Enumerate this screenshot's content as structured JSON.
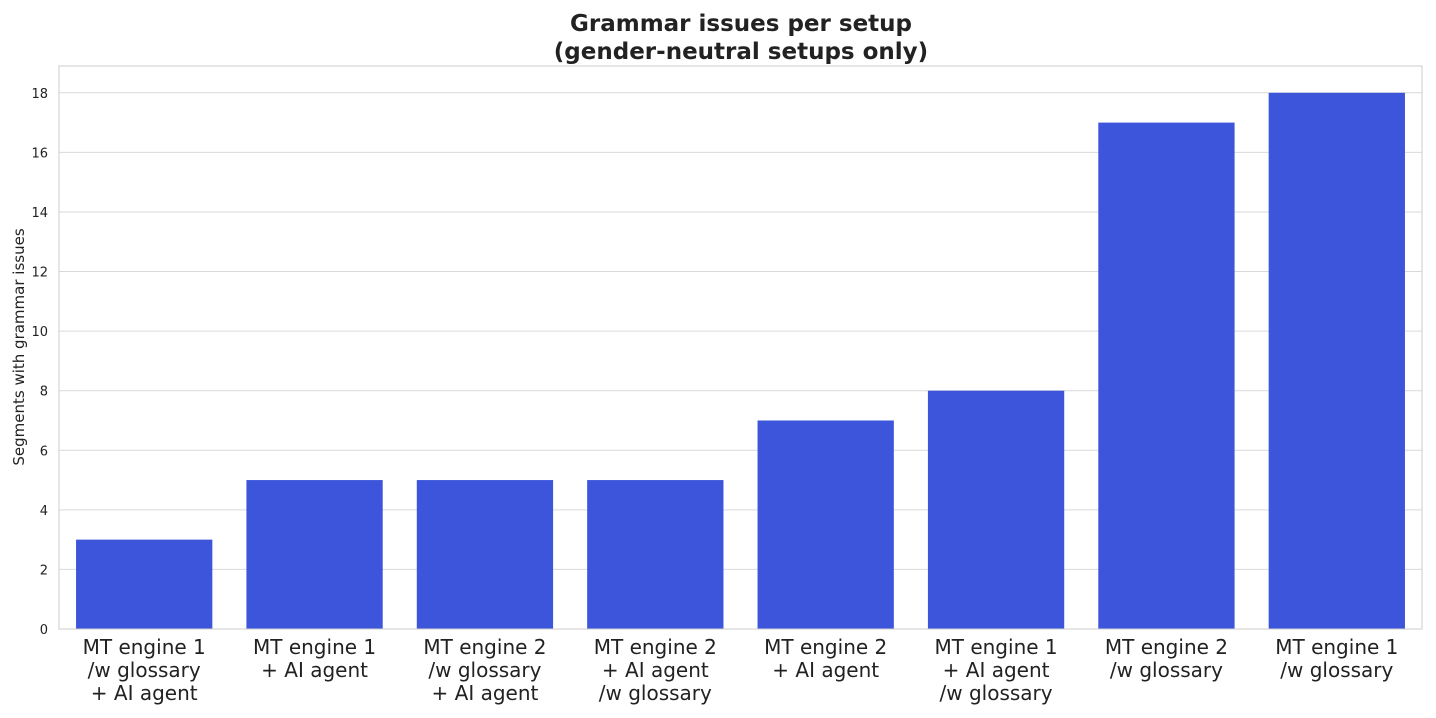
{
  "chart_data": {
    "type": "bar",
    "title_lines": [
      "Grammar issues per setup",
      "(gender-neutral setups only)"
    ],
    "xlabel": "",
    "ylabel": "Segments with grammar issues",
    "ylim": [
      0,
      18.9
    ],
    "yticks": [
      0,
      2,
      4,
      6,
      8,
      10,
      12,
      14,
      16,
      18
    ],
    "grid": "horizontal",
    "bar_color": "#3d55db",
    "categories": [
      [
        "MT engine 1",
        "/w glossary",
        "+ AI agent"
      ],
      [
        "MT engine 1",
        "+ AI agent"
      ],
      [
        "MT engine 2",
        "/w glossary",
        "+ AI agent"
      ],
      [
        "MT engine 2",
        "+ AI agent",
        "/w glossary"
      ],
      [
        "MT engine 2",
        "+ AI agent"
      ],
      [
        "MT engine 1",
        "+ AI agent",
        "/w glossary"
      ],
      [
        "MT engine 2",
        "/w glossary"
      ],
      [
        "MT engine 1",
        "/w glossary"
      ]
    ],
    "values": [
      3,
      5,
      5,
      5,
      7,
      8,
      17,
      18
    ]
  }
}
